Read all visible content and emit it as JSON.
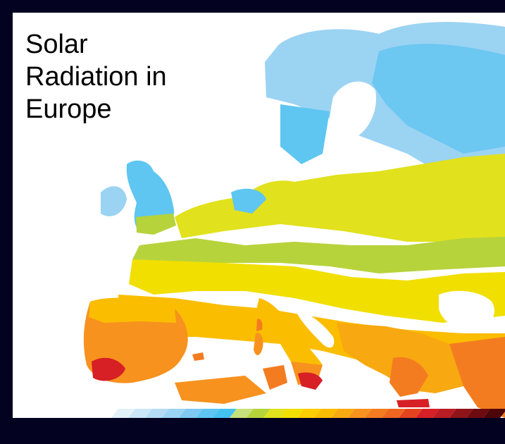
{
  "title_lines": [
    "Solar",
    "Radiation in",
    "Europe"
  ],
  "colors": {
    "background": "#030321",
    "panel": "#ffffff",
    "sea": "#ffffff"
  },
  "legend": {
    "colors": [
      "#e3f1fb",
      "#cbe6f8",
      "#b5dcf5",
      "#9bd3f3",
      "#7fc8f2",
      "#5ec6f1",
      "#44c2f0",
      "#c7e17a",
      "#b6d33b",
      "#e1e11d",
      "#f1df00",
      "#ffcc00",
      "#fbbd00",
      "#f8a810",
      "#f7921e",
      "#f47c20",
      "#ee6622",
      "#e44320",
      "#d71f26",
      "#b91c22",
      "#8f1419",
      "#6e0b10",
      "#4d0509"
    ]
  }
}
